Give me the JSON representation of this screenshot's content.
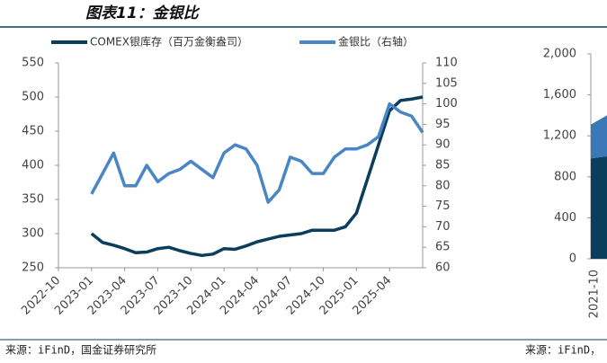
{
  "title": "图表11：金银比",
  "source_left": "来源：iFinD，国金证券研究所",
  "source_right": "来源：iFinD，",
  "chart_data": [
    {
      "type": "line",
      "x": [
        "2023-01",
        "2023-02",
        "2023-03",
        "2023-04",
        "2023-05",
        "2023-06",
        "2023-07",
        "2023-08",
        "2023-09",
        "2023-10",
        "2023-11",
        "2023-12",
        "2024-01",
        "2024-02",
        "2024-03",
        "2024-04",
        "2024-05",
        "2024-06",
        "2024-07",
        "2024-08",
        "2024-09",
        "2024-10",
        "2024-11",
        "2024-12",
        "2025-01",
        "2025-02",
        "2025-03",
        "2025-04",
        "2025-05",
        "2025-06",
        "2025-07"
      ],
      "series": [
        {
          "name": "COMEX银库存（百万金衡盎司）",
          "color": "#0b3d5c",
          "values": [
            300,
            287,
            283,
            278,
            272,
            273,
            278,
            280,
            275,
            271,
            268,
            270,
            278,
            277,
            282,
            288,
            292,
            296,
            298,
            300,
            305,
            305,
            305,
            310,
            330,
            380,
            430,
            480,
            495,
            497,
            500
          ]
        },
        {
          "name": "金银比（右轴）",
          "color": "#4a86c5",
          "axis": "y2",
          "values": [
            78,
            83,
            88,
            80,
            80,
            85,
            81,
            83,
            84,
            86,
            84,
            82,
            88,
            90,
            89,
            85,
            76,
            79,
            87,
            86,
            83,
            83,
            87,
            89,
            89,
            90,
            92,
            100,
            98,
            97,
            93
          ]
        }
      ],
      "xlim": [
        "2022-10",
        "2025-07"
      ],
      "xticks": [
        "2022-10",
        "2023-01",
        "2023-04",
        "2023-07",
        "2023-10",
        "2024-01",
        "2024-04",
        "2024-07",
        "2024-10",
        "2025-01",
        "2025-04"
      ],
      "ylim": [
        250,
        550
      ],
      "yticks": [
        250,
        300,
        350,
        400,
        450,
        500,
        550
      ],
      "y2lim": [
        60,
        110
      ],
      "y2ticks": [
        60,
        65,
        70,
        75,
        80,
        85,
        90,
        95,
        100,
        105,
        110
      ]
    },
    {
      "type": "area",
      "categories": [
        "2021-10",
        null
      ],
      "series": [
        {
          "color": "#0b3d5c",
          "values": [
            980,
            1000
          ]
        },
        {
          "color": "#3a78b8",
          "values": [
            330,
            400
          ]
        }
      ],
      "ylim": [
        0,
        2000
      ],
      "yticks": [
        0,
        400,
        800,
        {
          "value": 1200,
          "label": "1,200"
        },
        {
          "value": 1600,
          "label": "1,600"
        },
        {
          "value": 2000,
          "label": "2,000"
        }
      ]
    }
  ]
}
